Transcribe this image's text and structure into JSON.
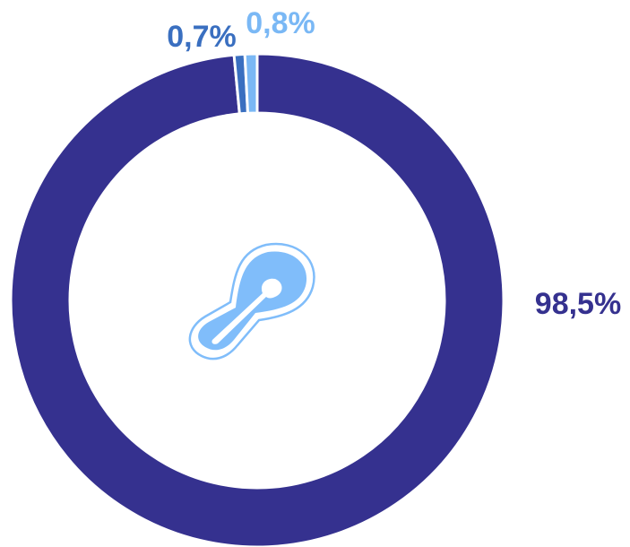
{
  "chart_data": {
    "type": "donut",
    "values": [
      98.5,
      0.7,
      0.8
    ],
    "value_labels": [
      "98,5%",
      "0,7%",
      "0,8%"
    ],
    "colors": [
      "#35318f",
      "#3a6fc0",
      "#7ab8f5"
    ]
  }
}
